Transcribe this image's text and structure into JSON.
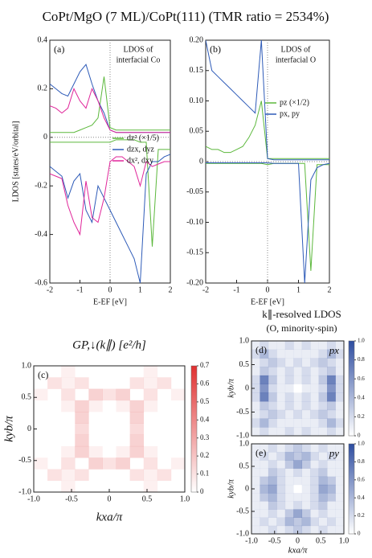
{
  "title": "CoPt/MgO (7 ML)/CoPt(111) (TMR ratio = 2534%)",
  "chart_data": [
    {
      "type": "line",
      "panel": "(a)",
      "annotation": [
        "LDOS of",
        "interfacial Co"
      ],
      "ylabel": "LDOS [states/eV/orbital]",
      "xlabel": "E-EF [eV]",
      "x": [
        -2,
        -1.8,
        -1.6,
        -1.4,
        -1.2,
        -1,
        -0.8,
        -0.6,
        -0.4,
        -0.2,
        0,
        0.2,
        0.4,
        0.6,
        0.8,
        1,
        1.2,
        1.4,
        1.6,
        1.8,
        2
      ],
      "xlim": [
        -2,
        2
      ],
      "xticks": [
        -2,
        -1,
        0,
        1,
        2
      ],
      "ylim": [
        -0.6,
        0.4
      ],
      "yticks": [
        -0.6,
        -0.4,
        -0.2,
        0,
        0.2,
        0.4
      ],
      "series": [
        {
          "name": "dz² (×1/5)",
          "color": "#5cb83c",
          "values": [
            0.02,
            0.02,
            0.02,
            0.02,
            0.02,
            0.03,
            0.04,
            0.05,
            0.08,
            0.25,
            0.04,
            0.03,
            0.03,
            0.03,
            0.03,
            0.03,
            0.03,
            0.03,
            0.03,
            0.03,
            0.03
          ],
          "minority_values": [
            -0.02,
            -0.02,
            -0.02,
            -0.02,
            -0.02,
            -0.02,
            -0.02,
            -0.02,
            -0.02,
            -0.02,
            -0.02,
            -0.01,
            -0.01,
            -0.01,
            -0.01,
            -0.02,
            -0.02,
            -0.45,
            -0.05,
            -0.05,
            -0.05
          ]
        },
        {
          "name": "dzx, dyz",
          "color": "#2e5bb8",
          "values": [
            0.22,
            0.2,
            0.18,
            0.17,
            0.22,
            0.27,
            0.3,
            0.22,
            0.15,
            0.1,
            0.03,
            0.02,
            0.02,
            0.02,
            0.02,
            0.02,
            0.02,
            0.02,
            0.02,
            0.02,
            0.02
          ],
          "minority_values": [
            -0.12,
            -0.14,
            -0.16,
            -0.25,
            -0.18,
            -0.15,
            -0.3,
            -0.35,
            -0.2,
            -0.25,
            -0.3,
            -0.35,
            -0.4,
            -0.45,
            -0.5,
            -0.6,
            -0.15,
            -0.1,
            -0.1,
            -0.08,
            -0.07
          ]
        },
        {
          "name": "dx², dxy",
          "color": "#e0269a",
          "values": [
            0.13,
            0.12,
            0.1,
            0.12,
            0.2,
            0.15,
            0.12,
            0.2,
            0.15,
            0.08,
            0.03,
            0.02,
            0.02,
            0.02,
            0.02,
            0.02,
            0.02,
            0.02,
            0.02,
            0.02,
            0.02
          ],
          "minority_values": [
            -0.15,
            -0.16,
            -0.17,
            -0.28,
            -0.35,
            -0.4,
            -0.18,
            -0.33,
            -0.35,
            -0.25,
            -0.1,
            -0.08,
            -0.08,
            -0.1,
            -0.12,
            -0.2,
            -0.1,
            -0.12,
            -0.11,
            -0.1,
            -0.1
          ]
        }
      ]
    },
    {
      "type": "line",
      "panel": "(b)",
      "annotation": [
        "LDOS of",
        "interfacial O"
      ],
      "xlabel": "E-EF [eV]",
      "x": [
        -2,
        -1.8,
        -1.6,
        -1.4,
        -1.2,
        -1,
        -0.8,
        -0.6,
        -0.4,
        -0.2,
        0,
        0.2,
        0.4,
        0.6,
        0.8,
        1,
        1.2,
        1.4,
        1.6,
        1.8,
        2
      ],
      "xlim": [
        -2,
        2
      ],
      "xticks": [
        -2,
        -1,
        0,
        1,
        2
      ],
      "ylim": [
        -0.2,
        0.2
      ],
      "yticks": [
        {
          "value": -0.2,
          "label": "-0.20"
        },
        -0.15,
        {
          "value": -0.1,
          "label": "-0.10"
        },
        -0.05,
        0,
        0.05,
        {
          "value": 0.1,
          "label": "0.10"
        },
        0.15,
        {
          "value": 0.2,
          "label": "0.20"
        }
      ],
      "series": [
        {
          "name": "pz (×1/2)",
          "color": "#5cb83c",
          "values": [
            0.025,
            0.02,
            0.02,
            0.015,
            0.015,
            0.02,
            0.025,
            0.04,
            0.06,
            0.1,
            0.005,
            0.005,
            0.005,
            0.005,
            0.005,
            0.005,
            0.005,
            0.005,
            0.005,
            0.005,
            0.005
          ],
          "minority_values": [
            -0.003,
            -0.003,
            -0.003,
            -0.003,
            -0.003,
            -0.003,
            -0.003,
            -0.003,
            -0.003,
            -0.003,
            -0.005,
            -0.003,
            -0.003,
            -0.003,
            -0.003,
            -0.003,
            -0.003,
            -0.18,
            -0.005,
            -0.005,
            -0.005
          ]
        },
        {
          "name": "px, py",
          "color": "#2e5bb8",
          "values": [
            0.2,
            0.15,
            0.14,
            0.13,
            0.12,
            0.11,
            0.1,
            0.09,
            0.08,
            0.2,
            0.005,
            0.003,
            0.003,
            0.003,
            0.003,
            0.003,
            0.003,
            0.003,
            0.003,
            0.003,
            0.003
          ],
          "minority_values": [
            -0.002,
            -0.002,
            -0.002,
            -0.002,
            -0.002,
            -0.002,
            -0.002,
            -0.002,
            -0.002,
            -0.002,
            -0.002,
            -0.003,
            -0.003,
            -0.003,
            -0.003,
            -0.003,
            -0.2,
            -0.03,
            -0.01,
            -0.005,
            -0.003
          ]
        }
      ]
    },
    {
      "type": "heatmap",
      "panel": "(c)",
      "title": "GP,↓(k∥) [e²/h]",
      "xlabel": "kxa/π",
      "ylabel": "kyb/π",
      "color": "#e03030",
      "xlim": [
        -1,
        1
      ],
      "ylim": [
        -1,
        1
      ],
      "xticks": [
        {
          "value": -1,
          "label": "-1.0"
        },
        -0.5,
        0,
        0.5,
        {
          "value": 1,
          "label": "1.0"
        }
      ],
      "yticks": [
        {
          "value": -1,
          "label": "-1.0"
        },
        -0.5,
        0,
        0.5,
        {
          "value": 1,
          "label": "1.0"
        }
      ],
      "zlim": [
        0,
        0.7
      ],
      "zticks": [
        0,
        0.1,
        0.2,
        0.3,
        0.4,
        0.5,
        0.6,
        0.7
      ],
      "z": [
        [
          0,
          0,
          0.05,
          0,
          0,
          0,
          0,
          0,
          0.05,
          0,
          0
        ],
        [
          0,
          0.1,
          0.05,
          0.1,
          0,
          0,
          0,
          0.1,
          0.05,
          0.1,
          0
        ],
        [
          0.05,
          0,
          0.1,
          0,
          0.15,
          0.1,
          0.15,
          0,
          0.1,
          0,
          0.05
        ],
        [
          0,
          0,
          0.05,
          0.15,
          0.05,
          0,
          0.05,
          0.15,
          0.05,
          0,
          0
        ],
        [
          0,
          0,
          0,
          0.15,
          0,
          0,
          0,
          0.15,
          0,
          0,
          0
        ],
        [
          0,
          0,
          0,
          0.12,
          0,
          0,
          0,
          0.12,
          0,
          0,
          0
        ],
        [
          0,
          0,
          0,
          0.15,
          0,
          0,
          0,
          0.15,
          0,
          0,
          0
        ],
        [
          0,
          0,
          0.05,
          0.15,
          0.05,
          0,
          0.05,
          0.15,
          0.05,
          0,
          0
        ],
        [
          0.05,
          0,
          0.1,
          0,
          0.15,
          0.1,
          0.15,
          0,
          0.1,
          0,
          0.05
        ],
        [
          0,
          0.1,
          0.05,
          0.1,
          0,
          0,
          0,
          0.1,
          0.05,
          0.1,
          0
        ],
        [
          0,
          0,
          0.05,
          0,
          0,
          0,
          0,
          0,
          0.05,
          0,
          0
        ]
      ]
    },
    {
      "type": "heatmap",
      "panel": "(d)",
      "title": "k∥-resolved LDOS",
      "subtitle": "(O, minority-spin)",
      "label": "px",
      "ylabel": "kyb/π",
      "color": "#2e4da0",
      "xlim": [
        -1,
        1
      ],
      "ylim": [
        -1,
        1
      ],
      "yticks": [
        {
          "value": -1,
          "label": "-1.0"
        },
        -0.5,
        0,
        0.5,
        {
          "value": 1,
          "label": "1.0"
        }
      ],
      "zlim": [
        0,
        1
      ],
      "zticks": [
        0,
        0.2,
        0.4,
        0.6,
        0.8,
        {
          "value": 1,
          "label": "1.0"
        }
      ],
      "z": [
        [
          0.1,
          0.2,
          0.1,
          0.1,
          0.2,
          0.1,
          0.2,
          0.1,
          0.1,
          0.2,
          0.1
        ],
        [
          0.2,
          0.4,
          0.2,
          0.1,
          0.1,
          0.1,
          0.1,
          0.1,
          0.2,
          0.4,
          0.2
        ],
        [
          0.1,
          0.2,
          0.3,
          0.2,
          0.1,
          0.2,
          0.1,
          0.2,
          0.3,
          0.2,
          0.1
        ],
        [
          0.1,
          0.3,
          0.2,
          0.1,
          0.2,
          0.1,
          0.2,
          0.1,
          0.2,
          0.3,
          0.1
        ],
        [
          0.2,
          0.7,
          0.3,
          0.1,
          0.2,
          0.1,
          0.2,
          0.1,
          0.3,
          0.7,
          0.2
        ],
        [
          0.2,
          0.6,
          0.2,
          0.1,
          0.1,
          0,
          0.1,
          0.1,
          0.2,
          0.6,
          0.2
        ],
        [
          0.2,
          0.7,
          0.3,
          0.1,
          0.2,
          0.1,
          0.2,
          0.1,
          0.3,
          0.7,
          0.2
        ],
        [
          0.1,
          0.3,
          0.2,
          0.1,
          0.2,
          0.1,
          0.2,
          0.1,
          0.2,
          0.3,
          0.1
        ],
        [
          0.1,
          0.2,
          0.3,
          0.2,
          0.1,
          0.2,
          0.1,
          0.2,
          0.3,
          0.2,
          0.1
        ],
        [
          0.2,
          0.4,
          0.2,
          0.1,
          0.1,
          0.1,
          0.1,
          0.1,
          0.2,
          0.4,
          0.2
        ],
        [
          0.1,
          0.2,
          0.1,
          0.1,
          0.2,
          0.1,
          0.2,
          0.1,
          0.1,
          0.2,
          0.1
        ]
      ]
    },
    {
      "type": "heatmap",
      "panel": "(e)",
      "label": "py",
      "xlabel": "kxa/π",
      "ylabel": "kyb/π",
      "color": "#2e4da0",
      "xlim": [
        -1,
        1
      ],
      "ylim": [
        -1,
        1
      ],
      "xticks": [
        {
          "value": -1,
          "label": "-1.0"
        },
        -0.5,
        0,
        0.5,
        {
          "value": 1,
          "label": "1.0"
        }
      ],
      "yticks": [
        {
          "value": -1,
          "label": "-1.0"
        },
        -0.5,
        0,
        0.5,
        {
          "value": 1,
          "label": "1.0"
        }
      ],
      "zlim": [
        0,
        1
      ],
      "zticks": [
        0,
        0.2,
        0.4,
        0.6,
        0.8,
        {
          "value": 1,
          "label": "1.0"
        }
      ],
      "z": [
        [
          0.1,
          0.1,
          0.2,
          0.1,
          0.2,
          0.3,
          0.2,
          0.1,
          0.2,
          0.1,
          0.1
        ],
        [
          0.1,
          0.2,
          0.1,
          0.2,
          0.4,
          0.3,
          0.4,
          0.2,
          0.1,
          0.2,
          0.1
        ],
        [
          0.1,
          0.1,
          0.2,
          0.1,
          0.3,
          0.5,
          0.3,
          0.1,
          0.2,
          0.1,
          0.1
        ],
        [
          0.1,
          0.1,
          0.3,
          0.2,
          0.1,
          0.2,
          0.1,
          0.2,
          0.3,
          0.1,
          0.1
        ],
        [
          0.1,
          0.3,
          0.4,
          0.2,
          0.1,
          0.1,
          0.1,
          0.2,
          0.4,
          0.3,
          0.1
        ],
        [
          0.1,
          0.4,
          0.5,
          0.2,
          0.1,
          0,
          0.1,
          0.2,
          0.5,
          0.4,
          0.1
        ],
        [
          0.1,
          0.3,
          0.4,
          0.2,
          0.1,
          0.1,
          0.1,
          0.2,
          0.4,
          0.3,
          0.1
        ],
        [
          0.1,
          0.1,
          0.3,
          0.2,
          0.1,
          0.2,
          0.1,
          0.2,
          0.3,
          0.1,
          0.1
        ],
        [
          0.1,
          0.1,
          0.2,
          0.1,
          0.3,
          0.5,
          0.3,
          0.1,
          0.2,
          0.1,
          0.1
        ],
        [
          0.1,
          0.2,
          0.1,
          0.2,
          0.4,
          0.3,
          0.4,
          0.2,
          0.1,
          0.2,
          0.1
        ],
        [
          0.1,
          0.1,
          0.2,
          0.1,
          0.2,
          0.3,
          0.2,
          0.1,
          0.2,
          0.1,
          0.1
        ]
      ]
    }
  ]
}
